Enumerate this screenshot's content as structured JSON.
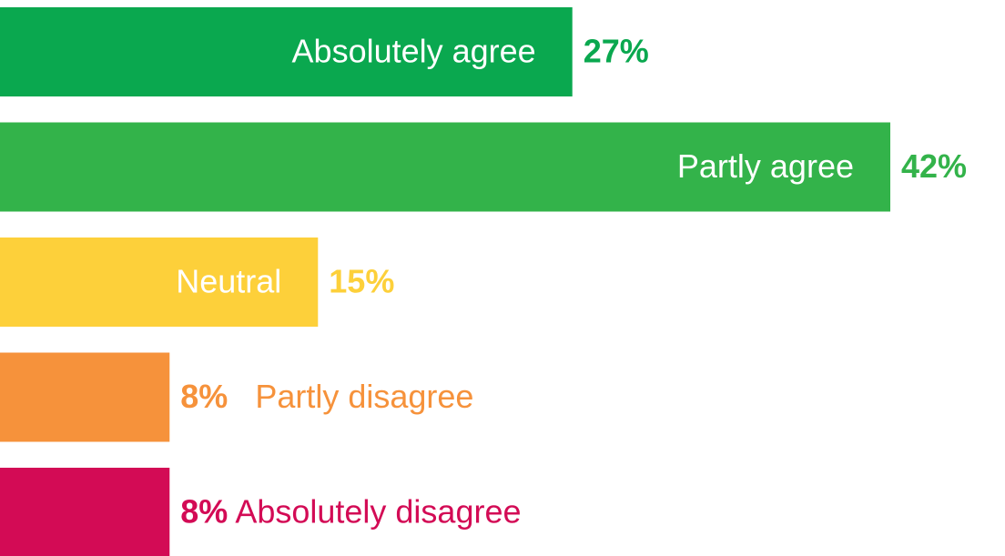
{
  "chart_data": {
    "type": "hbar",
    "categories": [
      "Absolutely agree",
      "Partly agree",
      "Neutral",
      "Partly disagree",
      "Absolutely disagree"
    ],
    "values": [
      27,
      42,
      15,
      8,
      8
    ],
    "value_labels": [
      "27%",
      "42%",
      "15%",
      "8%",
      "8%"
    ],
    "colors": [
      "#0aa84f",
      "#33b34a",
      "#fdd03a",
      "#f6923b",
      "#d30b55"
    ]
  }
}
